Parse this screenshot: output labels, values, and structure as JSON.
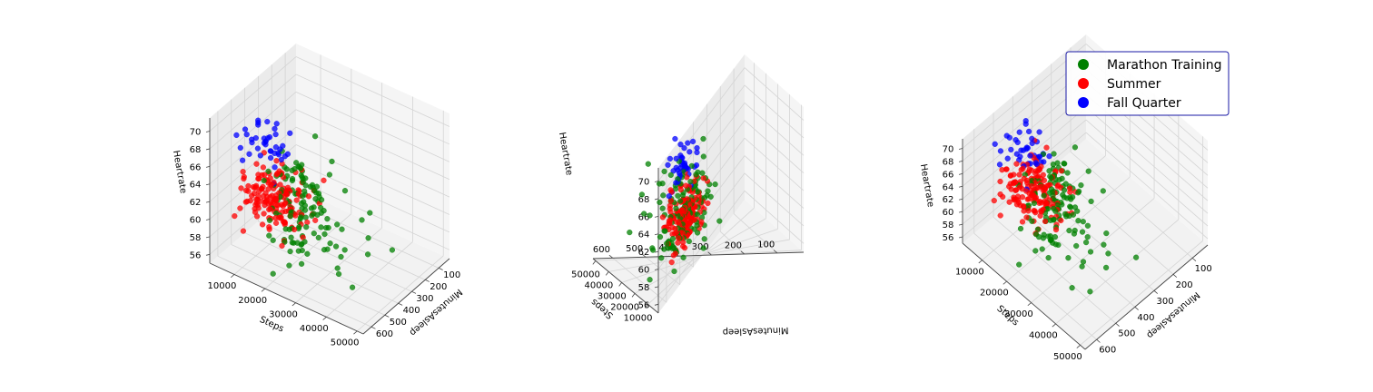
{
  "chart_data": [
    {
      "type": "scatter3d",
      "title": "",
      "xlabel": "Steps",
      "ylabel": "MinutesAsleep",
      "zlabel": "Heartrate",
      "x_ticks": [
        "10000",
        "20000",
        "30000",
        "40000",
        "50000"
      ],
      "y_ticks": [
        "100",
        "200",
        "300",
        "400",
        "500",
        "600"
      ],
      "z_ticks": [
        "56",
        "58",
        "60",
        "62",
        "64",
        "66",
        "68",
        "70"
      ],
      "xlim": [
        2000,
        52000
      ],
      "ylim": [
        20,
        660
      ],
      "zlim": [
        55,
        71.5
      ],
      "grid": true,
      "view": "elevation ~20, azimuth ~35",
      "series": [
        {
          "name": "Marathon Training",
          "color": "#008000",
          "approx_points": 130,
          "steps_range": [
            5000,
            50000
          ],
          "minutes_asleep_range": [
            250,
            650
          ],
          "heartrate_range": [
            55,
            70.5
          ]
        },
        {
          "name": "Summer",
          "color": "#ff0000",
          "approx_points": 160,
          "steps_range": [
            5000,
            30000
          ],
          "minutes_asleep_range": [
            300,
            550
          ],
          "heartrate_range": [
            57,
            66.5
          ]
        },
        {
          "name": "Fall Quarter",
          "color": "#0000ff",
          "approx_points": 40,
          "steps_range": [
            6000,
            20000
          ],
          "minutes_asleep_range": [
            380,
            520
          ],
          "heartrate_range": [
            64,
            70
          ]
        }
      ]
    },
    {
      "type": "scatter3d",
      "title": "",
      "xlabel": "Steps",
      "ylabel": "MinutesAsleep",
      "zlabel": "Heartrate",
      "x_ticks": [
        "10000",
        "20000",
        "30000",
        "40000",
        "50000"
      ],
      "y_ticks": [
        "100",
        "200",
        "300",
        "400",
        "500",
        "600"
      ],
      "z_ticks": [
        "56",
        "58",
        "60",
        "62",
        "64",
        "66",
        "68",
        "70"
      ],
      "xlim": [
        2000,
        52000
      ],
      "ylim": [
        20,
        660
      ],
      "zlim": [
        55,
        71.5
      ],
      "grid": true,
      "view": "elevation ~20, azimuth ~-60",
      "series": [
        {
          "name": "Marathon Training",
          "color": "#008000"
        },
        {
          "name": "Summer",
          "color": "#ff0000"
        },
        {
          "name": "Fall Quarter",
          "color": "#0000ff"
        }
      ]
    },
    {
      "type": "scatter3d",
      "title": "",
      "xlabel": "Steps",
      "ylabel": "MinutesAsleep",
      "zlabel": "Heartrate",
      "x_ticks": [
        "10000",
        "20000",
        "30000",
        "40000",
        "50000"
      ],
      "y_ticks": [
        "100",
        "200",
        "300",
        "400",
        "500",
        "600"
      ],
      "z_ticks": [
        "56",
        "58",
        "60",
        "62",
        "64",
        "66",
        "68",
        "70"
      ],
      "xlim": [
        2000,
        52000
      ],
      "ylim": [
        20,
        660
      ],
      "zlim": [
        55,
        71.5
      ],
      "grid": true,
      "view": "elevation ~40, azimuth ~45",
      "series": [
        {
          "name": "Marathon Training",
          "color": "#008000"
        },
        {
          "name": "Summer",
          "color": "#ff0000"
        },
        {
          "name": "Fall Quarter",
          "color": "#0000ff"
        }
      ]
    }
  ],
  "legend": {
    "placement": "top-right",
    "entries": [
      {
        "label": "Marathon Training",
        "color": "#008000"
      },
      {
        "label": "Summer",
        "color": "#ff0000"
      },
      {
        "label": "Fall Quarter",
        "color": "#0000ff"
      }
    ]
  }
}
